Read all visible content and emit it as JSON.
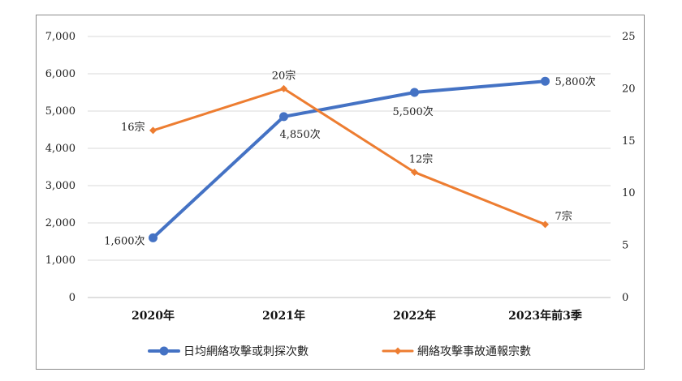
{
  "chart_data": {
    "type": "line",
    "categories": [
      "2020年",
      "2021年",
      "2022年",
      "2023年前3季"
    ],
    "series": [
      {
        "name": "日均網絡攻擊或刺探次數",
        "axis": "left",
        "values": [
          1600,
          4850,
          5500,
          5800
        ],
        "labels": [
          "1,600次",
          "4,850次",
          "5,500次",
          "5,800次"
        ],
        "color": "#4472C4",
        "marker": "circle"
      },
      {
        "name": "網絡攻擊事故通報宗數",
        "axis": "right",
        "values": [
          16,
          20,
          12,
          7
        ],
        "labels": [
          "16宗",
          "20宗",
          "12宗",
          "7宗"
        ],
        "color": "#ED7D31",
        "marker": "diamond"
      }
    ],
    "y_left": {
      "ylim": [
        0,
        7000
      ],
      "ticks": [
        "0",
        "1,000",
        "2,000",
        "3,000",
        "4,000",
        "5,000",
        "6,000",
        "7,000"
      ]
    },
    "y_right": {
      "ylim": [
        0,
        25
      ],
      "ticks": [
        "0",
        "5",
        "10",
        "15",
        "20",
        "25"
      ]
    },
    "grid": true,
    "legend": "bottom"
  }
}
